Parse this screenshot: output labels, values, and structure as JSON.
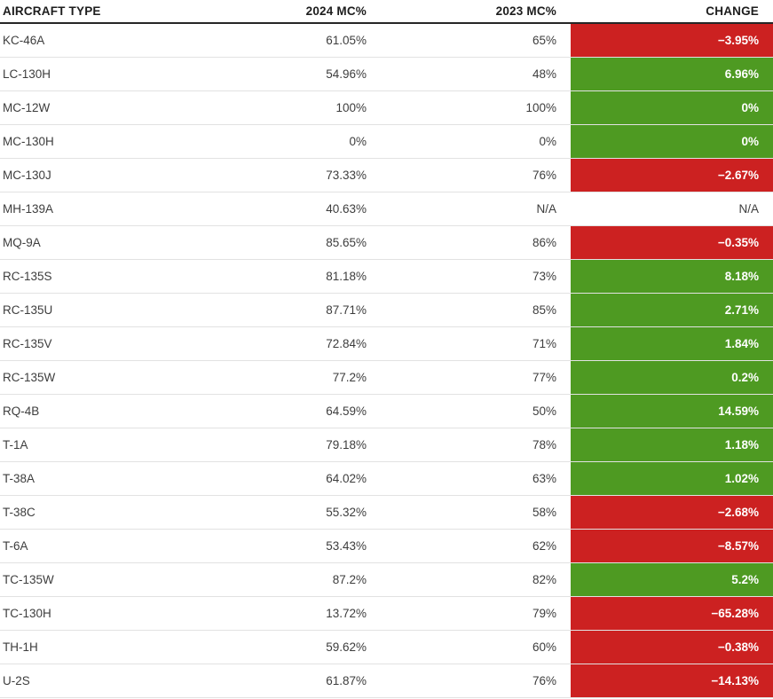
{
  "colors": {
    "positive_bg": "#4e9a22",
    "negative_bg": "#cc2121",
    "header_text": "#1d1d1d",
    "body_text": "#3d3d3d",
    "row_divider": "#e2e2e2",
    "header_border": "#262626",
    "change_text": "#ffffff"
  },
  "chart_data": {
    "type": "table",
    "columns": [
      "AIRCRAFT TYPE",
      "2024 MC%",
      "2023 MC%",
      "CHANGE"
    ],
    "rows": [
      {
        "aircraft": "KC-46A",
        "mc_2024": "61.05%",
        "mc_2023": "65%",
        "change": "−3.95%",
        "trend": "negative"
      },
      {
        "aircraft": "LC-130H",
        "mc_2024": "54.96%",
        "mc_2023": "48%",
        "change": "6.96%",
        "trend": "positive"
      },
      {
        "aircraft": "MC-12W",
        "mc_2024": "100%",
        "mc_2023": "100%",
        "change": "0%",
        "trend": "positive"
      },
      {
        "aircraft": "MC-130H",
        "mc_2024": "0%",
        "mc_2023": "0%",
        "change": "0%",
        "trend": "positive"
      },
      {
        "aircraft": "MC-130J",
        "mc_2024": "73.33%",
        "mc_2023": "76%",
        "change": "−2.67%",
        "trend": "negative"
      },
      {
        "aircraft": "MH-139A",
        "mc_2024": "40.63%",
        "mc_2023": "N/A",
        "change": "N/A",
        "trend": "none"
      },
      {
        "aircraft": "MQ-9A",
        "mc_2024": "85.65%",
        "mc_2023": "86%",
        "change": "−0.35%",
        "trend": "negative"
      },
      {
        "aircraft": "RC-135S",
        "mc_2024": "81.18%",
        "mc_2023": "73%",
        "change": "8.18%",
        "trend": "positive"
      },
      {
        "aircraft": "RC-135U",
        "mc_2024": "87.71%",
        "mc_2023": "85%",
        "change": "2.71%",
        "trend": "positive"
      },
      {
        "aircraft": "RC-135V",
        "mc_2024": "72.84%",
        "mc_2023": "71%",
        "change": "1.84%",
        "trend": "positive"
      },
      {
        "aircraft": "RC-135W",
        "mc_2024": "77.2%",
        "mc_2023": "77%",
        "change": "0.2%",
        "trend": "positive"
      },
      {
        "aircraft": "RQ-4B",
        "mc_2024": "64.59%",
        "mc_2023": "50%",
        "change": "14.59%",
        "trend": "positive"
      },
      {
        "aircraft": "T-1A",
        "mc_2024": "79.18%",
        "mc_2023": "78%",
        "change": "1.18%",
        "trend": "positive"
      },
      {
        "aircraft": "T-38A",
        "mc_2024": "64.02%",
        "mc_2023": "63%",
        "change": "1.02%",
        "trend": "positive"
      },
      {
        "aircraft": "T-38C",
        "mc_2024": "55.32%",
        "mc_2023": "58%",
        "change": "−2.68%",
        "trend": "negative"
      },
      {
        "aircraft": "T-6A",
        "mc_2024": "53.43%",
        "mc_2023": "62%",
        "change": "−8.57%",
        "trend": "negative"
      },
      {
        "aircraft": "TC-135W",
        "mc_2024": "87.2%",
        "mc_2023": "82%",
        "change": "5.2%",
        "trend": "positive"
      },
      {
        "aircraft": "TC-130H",
        "mc_2024": "13.72%",
        "mc_2023": "79%",
        "change": "−65.28%",
        "trend": "negative"
      },
      {
        "aircraft": "TH-1H",
        "mc_2024": "59.62%",
        "mc_2023": "60%",
        "change": "−0.38%",
        "trend": "negative"
      },
      {
        "aircraft": "U-2S",
        "mc_2024": "61.87%",
        "mc_2023": "76%",
        "change": "−14.13%",
        "trend": "negative"
      }
    ]
  }
}
